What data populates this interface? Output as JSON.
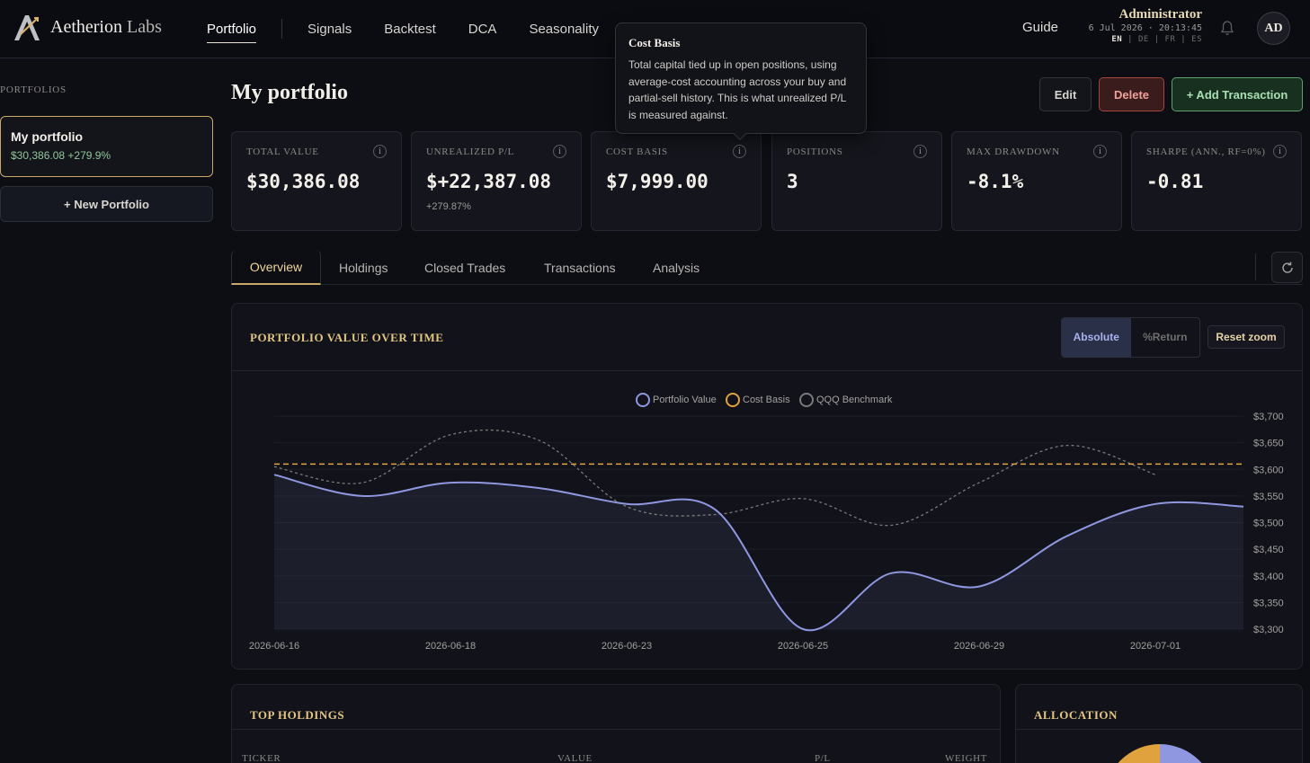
{
  "brand": {
    "name": "Aetherion",
    "suffix": "Labs"
  },
  "nav": {
    "items": [
      "Portfolio",
      "Signals",
      "Backtest",
      "DCA",
      "Seasonality"
    ],
    "active": "Portfolio",
    "guide": "Guide"
  },
  "user": {
    "name": "Administrator",
    "datetime": "6 Jul 2026 · 20:13:45",
    "langs": [
      "EN",
      "DE",
      "FR",
      "ES"
    ],
    "active_lang": "EN",
    "initials": "AD"
  },
  "tooltip": {
    "title": "Cost Basis",
    "body": "Total capital tied up in open positions, using average-cost accounting across your buy and partial-sell history. This is what unrealized P/L is measured against."
  },
  "sidebar": {
    "title": "PORTFOLIOS",
    "portfolio": {
      "name": "My portfolio",
      "stats": "$30,386.08 +279.9%"
    },
    "new_button": "+ New Portfolio"
  },
  "main": {
    "title": "My portfolio",
    "buttons": {
      "edit": "Edit",
      "delete": "Delete",
      "add": "+ Add Transaction"
    }
  },
  "stats": [
    {
      "label": "TOTAL VALUE",
      "value": "$30,386.08",
      "sub": ""
    },
    {
      "label": "UNREALIZED P/L",
      "value": "$+22,387.08",
      "sub": "+279.87%"
    },
    {
      "label": "COST BASIS",
      "value": "$7,999.00",
      "sub": ""
    },
    {
      "label": "POSITIONS",
      "value": "3",
      "sub": ""
    },
    {
      "label": "MAX DRAWDOWN",
      "value": "-8.1%",
      "sub": ""
    },
    {
      "label": "SHARPE (ANN., RF=0%)",
      "value": "-0.81",
      "sub": ""
    }
  ],
  "tabs": [
    "Overview",
    "Holdings",
    "Closed Trades",
    "Transactions",
    "Analysis"
  ],
  "active_tab": "Overview",
  "chart_panel": {
    "title": "PORTFOLIO VALUE OVER TIME",
    "toggle": {
      "absolute": "Absolute",
      "return_line1": "%",
      "return_line2": "Return",
      "selected": "Absolute"
    },
    "reset": "Reset zoom"
  },
  "chart_data": {
    "type": "line",
    "y_ticks": [
      "$3,700",
      "$3,650",
      "$3,600",
      "$3,550",
      "$3,500",
      "$3,450",
      "$3,400",
      "$3,350",
      "$3,300"
    ],
    "ylim": [
      3300,
      3700
    ],
    "x_ticks": [
      "2026-06-16",
      "2026-06-18",
      "2026-06-23",
      "2026-06-25",
      "2026-06-29",
      "2026-07-01"
    ],
    "colors": {
      "portfolio": "#8f97e0",
      "cost": "#e0a23c",
      "qqq": "#7a7a7a"
    },
    "series": [
      {
        "name": "Portfolio Value",
        "x": [
          0,
          0.5,
          1,
          1.5,
          2,
          2.5,
          3,
          3.5,
          4,
          4.5,
          5,
          5.5
        ],
        "values": [
          3590,
          3550,
          3575,
          3565,
          3535,
          3525,
          3300,
          3405,
          3380,
          3475,
          3535,
          3530
        ]
      },
      {
        "name": "Cost Basis",
        "x": [
          0,
          5.5
        ],
        "values": [
          3610,
          3610
        ]
      },
      {
        "name": "QQQ Benchmark",
        "x": [
          0,
          0.5,
          1,
          1.5,
          2,
          2.5,
          3,
          3.5,
          4,
          4.5,
          5
        ],
        "values": [
          3605,
          3575,
          3665,
          3655,
          3530,
          3515,
          3545,
          3495,
          3575,
          3645,
          3590
        ]
      }
    ]
  },
  "holdings": {
    "title": "TOP HOLDINGS",
    "columns": [
      "TICKER",
      "VALUE",
      "P/L",
      "WEIGHT"
    ]
  },
  "allocation": {
    "title": "ALLOCATION"
  }
}
